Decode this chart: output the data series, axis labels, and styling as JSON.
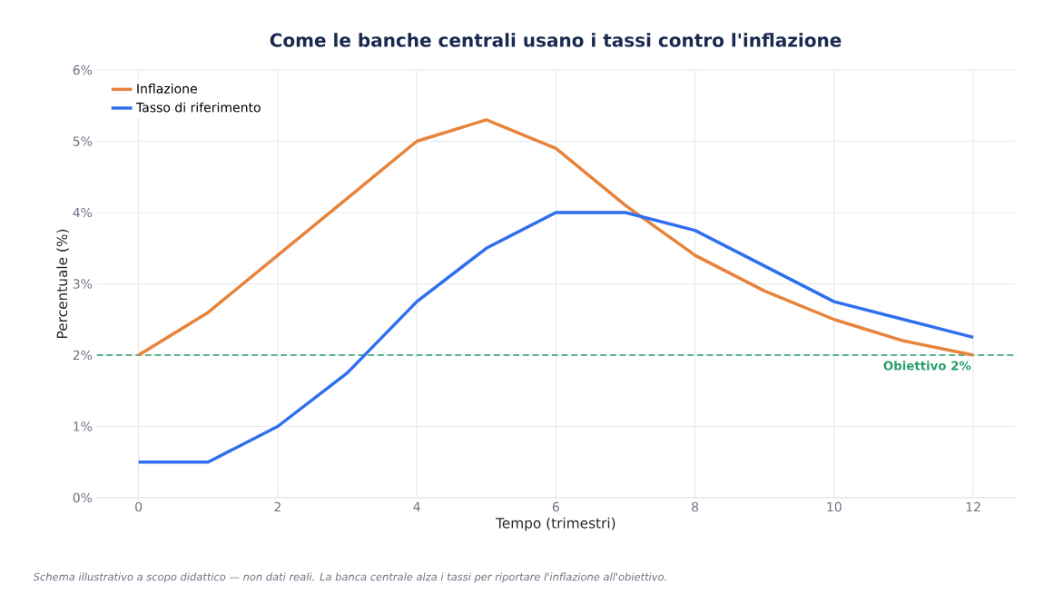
{
  "chart_data": {
    "type": "line",
    "title": "Come le banche centrali usano i tassi contro l'inflazione",
    "xlabel": "Tempo (trimestri)",
    "ylabel": "Percentuale (%)",
    "x": [
      0,
      1,
      2,
      3,
      4,
      5,
      6,
      7,
      8,
      9,
      10,
      11,
      12
    ],
    "series": [
      {
        "name": "Inflazione",
        "color": "#e8833a",
        "values": [
          2.0,
          2.6,
          3.4,
          4.2,
          5.0,
          5.3,
          4.9,
          4.1,
          3.4,
          2.9,
          2.5,
          2.2,
          2.0
        ]
      },
      {
        "name": "Tasso di riferimento",
        "color": "#2f6fef",
        "values": [
          0.5,
          0.5,
          1.0,
          1.75,
          2.75,
          3.5,
          4.0,
          4.0,
          3.75,
          3.25,
          2.75,
          2.5,
          2.25
        ]
      }
    ],
    "xlim": [
      -0.6,
      12.6
    ],
    "ylim": [
      0,
      6
    ],
    "xticks": [
      0,
      2,
      4,
      6,
      8,
      10,
      12
    ],
    "yticks": [
      {
        "value": 0,
        "label": "0%"
      },
      {
        "value": 1,
        "label": "1%"
      },
      {
        "value": 2,
        "label": "2%"
      },
      {
        "value": 3,
        "label": "3%"
      },
      {
        "value": 4,
        "label": "4%"
      },
      {
        "value": 5,
        "label": "5%"
      },
      {
        "value": 6,
        "label": "6%"
      }
    ],
    "ref_lines": [
      {
        "axis": "y",
        "value": 2,
        "label": "Obiettivo 2%",
        "color": "#2a9d6a",
        "line_style": "dashed"
      }
    ],
    "annotations": [
      "Schema illustrativo a scopo didattico — non dati reali. La banca centrale alza i tassi per riportare l'inflazione all'obiettivo."
    ],
    "grid": true,
    "legend": "top left",
    "marker": "none",
    "line_style": "solid"
  }
}
